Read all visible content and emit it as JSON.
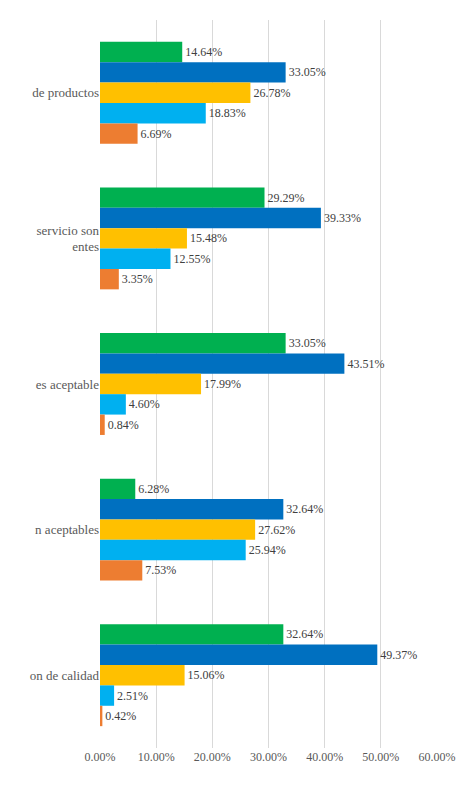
{
  "chart_data": {
    "type": "bar",
    "orientation": "horizontal",
    "categories": [
      "de productos",
      "servicio son\nentes",
      "es aceptable",
      "n aceptables",
      "on de calidad"
    ],
    "series": [
      {
        "color": "#00B050",
        "values": [
          14.64,
          29.29,
          33.05,
          6.28,
          32.64
        ],
        "value_labels": [
          "14.64%",
          "29.29%",
          "33.05%",
          "6.28%",
          "32.64%"
        ]
      },
      {
        "color": "#0070C0",
        "values": [
          33.05,
          39.33,
          43.51,
          32.64,
          49.37
        ],
        "value_labels": [
          "33.05%",
          "39.33%",
          "43.51%",
          "32.64%",
          "49.37%"
        ]
      },
      {
        "color": "#FFC000",
        "values": [
          26.78,
          15.48,
          17.99,
          27.62,
          15.06
        ],
        "value_labels": [
          "26.78%",
          "15.48%",
          "17.99%",
          "27.62%",
          "15.06%"
        ]
      },
      {
        "color": "#00B0F0",
        "values": [
          18.83,
          12.55,
          4.6,
          25.94,
          2.51
        ],
        "value_labels": [
          "18.83%",
          "12.55%",
          "4.60%",
          "25.94%",
          "2.51%"
        ]
      },
      {
        "color": "#ED7D31",
        "values": [
          6.69,
          3.35,
          0.84,
          7.53,
          0.42
        ],
        "value_labels": [
          "6.69%",
          "3.35%",
          "0.84%",
          "7.53%",
          "0.42%"
        ]
      }
    ],
    "xlim": [
      0,
      60
    ],
    "xticks": [
      {
        "value": 0,
        "label": "0.00%"
      },
      {
        "value": 10,
        "label": "10.00%"
      },
      {
        "value": 20,
        "label": "20.00%"
      },
      {
        "value": 30,
        "label": "30.00%"
      },
      {
        "value": 40,
        "label": "40.00%"
      },
      {
        "value": 50,
        "label": "50.00%"
      },
      {
        "value": 60,
        "label": "60.00%"
      }
    ],
    "grid": true,
    "data_labels": true
  }
}
